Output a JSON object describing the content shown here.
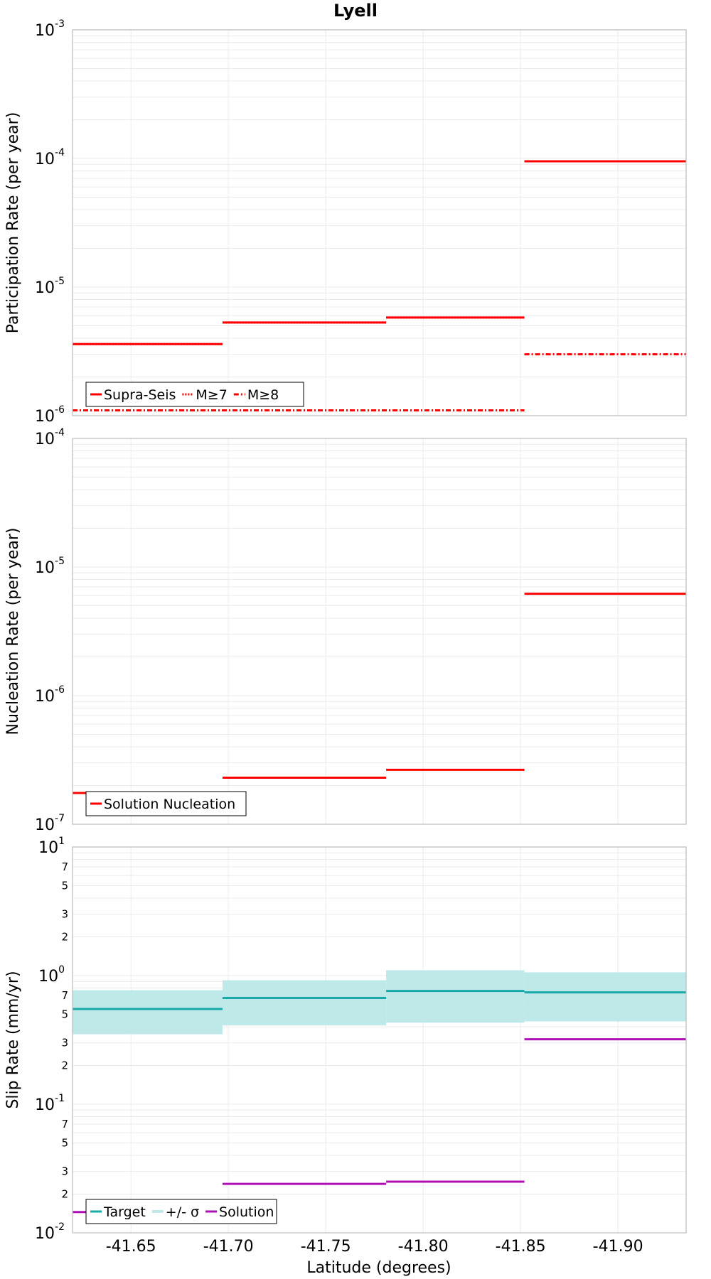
{
  "title": "Lyell",
  "colors": {
    "red": "#ff0000",
    "teal": "#1aa9a9",
    "teal_band": "#bfe9e9",
    "magenta": "#b010b8",
    "grid": "#ebebeb",
    "frame": "#bbbbbb"
  },
  "chart_data": [
    {
      "type": "line",
      "step": true,
      "ylabel": "Participation Rate (per year)",
      "yscale": "log",
      "ylim": [
        1e-06,
        0.001
      ],
      "y_decades": [
        {
          "value": 1e-06,
          "base": "10",
          "exp": "-6"
        },
        {
          "value": 1e-05,
          "base": "10",
          "exp": "-5"
        },
        {
          "value": 0.0001,
          "base": "10",
          "exp": "-4"
        },
        {
          "value": 0.001,
          "base": "10",
          "exp": "-3"
        }
      ],
      "grid": true,
      "legend_position": "bottom-left",
      "series": [
        {
          "name": "Supra-Seis",
          "style": "solid",
          "color": "#ff0000",
          "segments": [
            [
              -41.62,
              -41.697,
              3.6e-06
            ],
            [
              -41.697,
              -41.781,
              5.3e-06
            ],
            [
              -41.781,
              -41.852,
              5.8e-06
            ],
            [
              -41.852,
              -41.935,
              9.5e-05
            ]
          ]
        },
        {
          "name": "M≥7",
          "style": "dotted",
          "color": "#ff0000",
          "segments": [
            [
              -41.62,
              -41.697,
              3.6e-06
            ],
            [
              -41.697,
              -41.781,
              5.3e-06
            ],
            [
              -41.781,
              -41.852,
              5.8e-06
            ],
            [
              -41.852,
              -41.935,
              9.5e-05
            ]
          ]
        },
        {
          "name": "M≥8",
          "style": "dashdot",
          "color": "#ff0000",
          "segments": [
            [
              -41.62,
              -41.852,
              1.1e-06
            ],
            [
              -41.852,
              -41.935,
              3e-06
            ]
          ]
        }
      ]
    },
    {
      "type": "line",
      "step": true,
      "ylabel": "Nucleation Rate (per year)",
      "yscale": "log",
      "ylim": [
        1e-07,
        0.0001
      ],
      "y_decades": [
        {
          "value": 1e-07,
          "base": "10",
          "exp": "-7"
        },
        {
          "value": 1e-06,
          "base": "10",
          "exp": "-6"
        },
        {
          "value": 1e-05,
          "base": "10",
          "exp": "-5"
        },
        {
          "value": 0.0001,
          "base": "10",
          "exp": "-4"
        }
      ],
      "grid": true,
      "legend_position": "bottom-left",
      "series": [
        {
          "name": "Solution Nucleation",
          "style": "solid",
          "color": "#ff0000",
          "segments": [
            [
              -41.62,
              -41.697,
              1.75e-07
            ],
            [
              -41.697,
              -41.781,
              2.3e-07
            ],
            [
              -41.781,
              -41.852,
              2.65e-07
            ],
            [
              -41.852,
              -41.935,
              6.2e-06
            ]
          ]
        }
      ]
    },
    {
      "type": "line",
      "step": true,
      "ylabel": "Slip Rate (mm/yr)",
      "xlabel": "Latitude (degrees)",
      "yscale": "log",
      "ylim": [
        0.01,
        10
      ],
      "y_decades": [
        {
          "value": 0.01,
          "base": "10",
          "exp": "-2"
        },
        {
          "value": 0.1,
          "base": "10",
          "exp": "-1"
        },
        {
          "value": 1,
          "base": "10",
          "exp": "0"
        },
        {
          "value": 10,
          "base": "10",
          "exp": "1"
        }
      ],
      "y_minor_labels": [
        {
          "value": 0.02,
          "label": "2"
        },
        {
          "value": 0.03,
          "label": "3"
        },
        {
          "value": 0.05,
          "label": "5"
        },
        {
          "value": 0.07,
          "label": "7"
        },
        {
          "value": 0.2,
          "label": "2"
        },
        {
          "value": 0.3,
          "label": "3"
        },
        {
          "value": 0.5,
          "label": "5"
        },
        {
          "value": 0.7,
          "label": "7"
        },
        {
          "value": 2,
          "label": "2"
        },
        {
          "value": 3,
          "label": "3"
        },
        {
          "value": 5,
          "label": "5"
        },
        {
          "value": 7,
          "label": "7"
        }
      ],
      "grid": true,
      "legend_position": "bottom-left",
      "series": [
        {
          "name": "Target",
          "style": "solid",
          "color": "#1aa9a9",
          "segments": [
            [
              -41.62,
              -41.697,
              0.55
            ],
            [
              -41.697,
              -41.781,
              0.67
            ],
            [
              -41.781,
              -41.852,
              0.76
            ],
            [
              -41.852,
              -41.935,
              0.74
            ]
          ]
        },
        {
          "name": "+/- σ",
          "style": "band",
          "color": "#bfe9e9",
          "segments": [
            [
              -41.62,
              -41.697,
              0.35,
              0.77
            ],
            [
              -41.697,
              -41.781,
              0.41,
              0.92
            ],
            [
              -41.781,
              -41.852,
              0.43,
              1.1
            ],
            [
              -41.852,
              -41.935,
              0.44,
              1.06
            ]
          ]
        },
        {
          "name": "Solution",
          "style": "solid",
          "color": "#b010b8",
          "segments": [
            [
              -41.62,
              -41.697,
              0.0145
            ],
            [
              -41.697,
              -41.781,
              0.024
            ],
            [
              -41.781,
              -41.852,
              0.025
            ],
            [
              -41.852,
              -41.935,
              0.32
            ]
          ]
        }
      ]
    }
  ],
  "x_axis": {
    "label": "Latitude (degrees)",
    "xlim": [
      -41.62,
      -41.935
    ],
    "ticks": [
      {
        "value": -41.65,
        "label": "-41.65"
      },
      {
        "value": -41.7,
        "label": "-41.70"
      },
      {
        "value": -41.75,
        "label": "-41.75"
      },
      {
        "value": -41.8,
        "label": "-41.80"
      },
      {
        "value": -41.85,
        "label": "-41.85"
      },
      {
        "value": -41.9,
        "label": "-41.90"
      }
    ]
  }
}
